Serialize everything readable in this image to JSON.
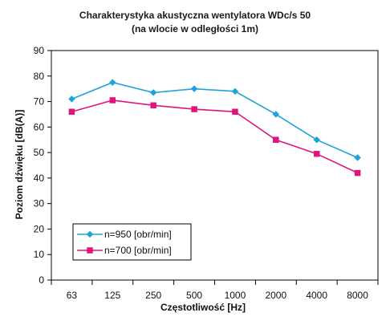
{
  "chart_data": {
    "type": "line",
    "title": "Charakterystyka akustyczna wentylatora WDc/s 50",
    "subtitle": "(na wlocie w odległości 1m)",
    "xlabel": "Częstotliwość [Hz]",
    "ylabel": "Poziom dźwięku [dB(A)]",
    "categories": [
      "63",
      "125",
      "250",
      "500",
      "1000",
      "2000",
      "4000",
      "8000"
    ],
    "ylim": [
      0,
      90
    ],
    "yticks": [
      0,
      10,
      20,
      30,
      40,
      50,
      60,
      70,
      80,
      90
    ],
    "grid": true,
    "legend_position": "bottom-left",
    "series": [
      {
        "name": "n=950 [obr/min]",
        "color": "#1fa3dc",
        "marker": "diamond",
        "values": [
          71,
          77.5,
          73.5,
          75,
          74,
          65,
          55,
          48
        ]
      },
      {
        "name": "n=700 [obr/min]",
        "color": "#e0147a",
        "marker": "square",
        "values": [
          66,
          70.5,
          68.5,
          67,
          66,
          55,
          49.5,
          42
        ]
      }
    ]
  }
}
